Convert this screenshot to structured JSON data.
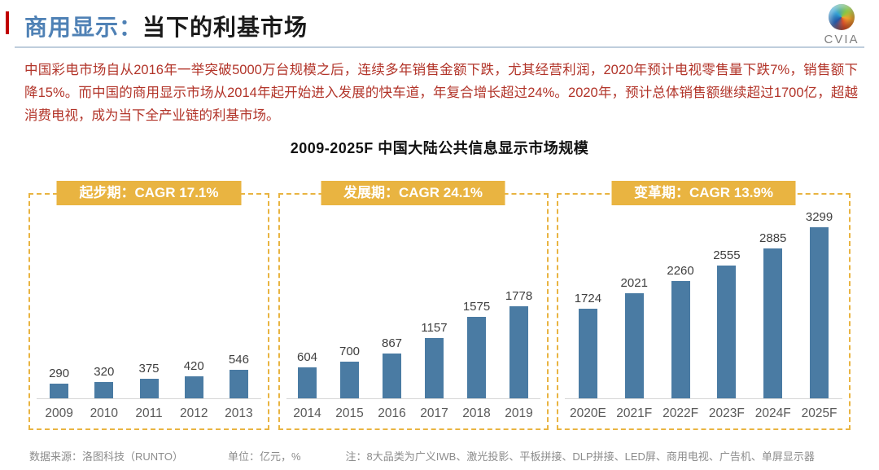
{
  "header": {
    "title_prefix": "商用显示：",
    "title_main": "当下的利基市场",
    "logo_text": "CVIA"
  },
  "intro_paragraph": "中国彩电市场自从2016年一举突破5000万台规模之后，连续多年销售金额下跌，尤其经营利润，2020年预计电视零售量下跌7%，销售额下降15%。而中国的商用显示市场从2014年起开始进入发展的快车道，年复合增长超过24%。2020年，预计总体销售额继续超过1700亿，超越消费电视，成为当下全产业链的利基市场。",
  "chart_data": {
    "type": "bar",
    "title": "2009-2025F 中国大陆公共信息显示市场规模",
    "unit": "亿元",
    "ylim": [
      0,
      3500
    ],
    "bar_color": "#4a7ba3",
    "accent_color": "#e9b441",
    "groups": [
      {
        "label": "起步期：CAGR 17.1%",
        "categories": [
          "2009",
          "2010",
          "2011",
          "2012",
          "2013"
        ],
        "values": [
          290,
          320,
          375,
          420,
          546
        ]
      },
      {
        "label": "发展期：CAGR 24.1%",
        "categories": [
          "2014",
          "2015",
          "2016",
          "2017",
          "2018",
          "2019"
        ],
        "values": [
          604,
          700,
          867,
          1157,
          1575,
          1778
        ]
      },
      {
        "label": "变革期：CAGR 13.9%",
        "categories": [
          "2020E",
          "2021F",
          "2022F",
          "2023F",
          "2024F",
          "2025F"
        ],
        "values": [
          1724,
          2021,
          2260,
          2555,
          2885,
          3299
        ]
      }
    ]
  },
  "footer": {
    "source": "数据来源：洛图科技（RUNTO）",
    "unit": "单位：亿元，%",
    "note": "注：8大品类为广义IWB、激光投影、平板拼接、DLP拼接、LED屏、商用电视、广告机、单屏显示器"
  }
}
